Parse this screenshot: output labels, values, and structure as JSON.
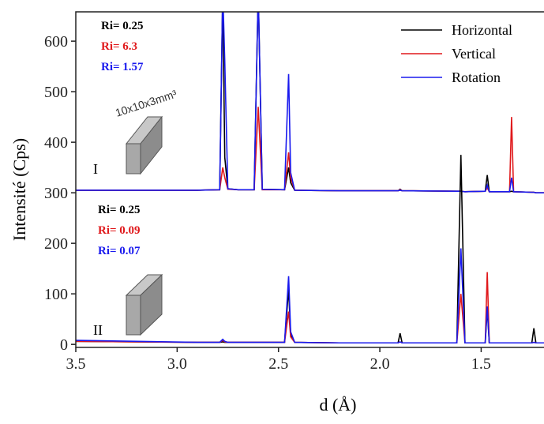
{
  "chart_data": {
    "type": "line",
    "x_label": "d (Å)",
    "y_label": "Intensité (Cps)",
    "x": [
      3.5,
      3.2,
      2.9,
      2.79,
      2.775,
      2.765,
      2.75,
      2.7,
      2.62,
      2.6,
      2.58,
      2.47,
      2.45,
      2.44,
      2.42,
      2.2,
      1.91,
      1.9,
      1.89,
      1.62,
      1.6,
      1.58,
      1.48,
      1.47,
      1.46,
      1.36,
      1.35,
      1.34,
      1.25,
      1.24,
      1.23,
      1.19
    ],
    "series": [
      {
        "name": "Horizontal",
        "color": "#000000",
        "values": [
          305,
          305,
          305,
          306,
          700,
          370,
          308,
          306,
          306,
          700,
          307,
          306,
          350,
          320,
          305,
          304,
          304,
          307,
          304,
          303,
          303,
          302,
          303,
          335,
          302,
          302,
          303,
          302,
          301,
          301,
          300,
          300
        ]
      },
      {
        "name": "Vertical",
        "color": "#e0191c",
        "values": [
          305,
          305,
          305,
          306,
          350,
          330,
          307,
          306,
          306,
          470,
          306,
          306,
          380,
          330,
          305,
          304,
          304,
          306,
          304,
          303,
          303,
          302,
          303,
          310,
          302,
          302,
          450,
          302,
          301,
          301,
          300,
          300
        ]
      },
      {
        "name": "Rotation",
        "color": "#1a1aee",
        "values": [
          305,
          305,
          305,
          306,
          700,
          560,
          308,
          306,
          306,
          700,
          307,
          306,
          535,
          340,
          305,
          304,
          304,
          305,
          304,
          303,
          303,
          302,
          303,
          315,
          302,
          302,
          330,
          302,
          301,
          301,
          300,
          300
        ]
      },
      {
        "color": "#000000",
        "values": [
          6,
          5,
          4,
          4,
          5,
          4,
          4,
          4,
          4,
          4,
          4,
          4,
          110,
          20,
          4,
          3,
          3,
          22,
          3,
          3,
          375,
          3,
          3,
          70,
          3,
          3,
          3,
          3,
          3,
          32,
          3,
          3
        ]
      },
      {
        "color": "#e0191c",
        "values": [
          6,
          5,
          4,
          4,
          8,
          5,
          4,
          4,
          4,
          4,
          4,
          4,
          65,
          15,
          4,
          3,
          3,
          5,
          3,
          3,
          100,
          3,
          3,
          143,
          3,
          3,
          3,
          3,
          3,
          4,
          3,
          3
        ]
      },
      {
        "color": "#1a1aee",
        "values": [
          8,
          6,
          4,
          4,
          10,
          6,
          4,
          4,
          4,
          4,
          4,
          4,
          135,
          25,
          4,
          3,
          3,
          5,
          3,
          3,
          190,
          3,
          3,
          75,
          3,
          3,
          3,
          3,
          3,
          4,
          3,
          3
        ]
      }
    ],
    "xlim": [
      3.5,
      1.19
    ],
    "xticks": [
      3.5,
      {
        "value": 3,
        "label": "3.0"
      },
      2.5,
      {
        "value": 2,
        "label": "2.0"
      },
      1.5
    ],
    "ylim": [
      -6,
      658
    ],
    "yticks": [
      0,
      100,
      200,
      300,
      400,
      500,
      600
    ],
    "annotations": [
      {
        "text": "Ri= 0.25",
        "color": "#000000"
      },
      {
        "text": "Ri= 6.3",
        "color": "#e0191c"
      },
      {
        "text": "Ri= 1.57",
        "color": "#1a1aee"
      },
      {
        "text": "Ri= 0.25",
        "color": "#000000"
      },
      {
        "text": "Ri= 0.09",
        "color": "#e0191c"
      },
      {
        "text": "Ri= 0.07",
        "color": "#1a1aee"
      },
      {
        "text": "10x10x3mm³",
        "color": "#333333"
      },
      {
        "text": "I",
        "color": "#000000"
      },
      {
        "text": "II",
        "color": "#000000"
      }
    ]
  }
}
